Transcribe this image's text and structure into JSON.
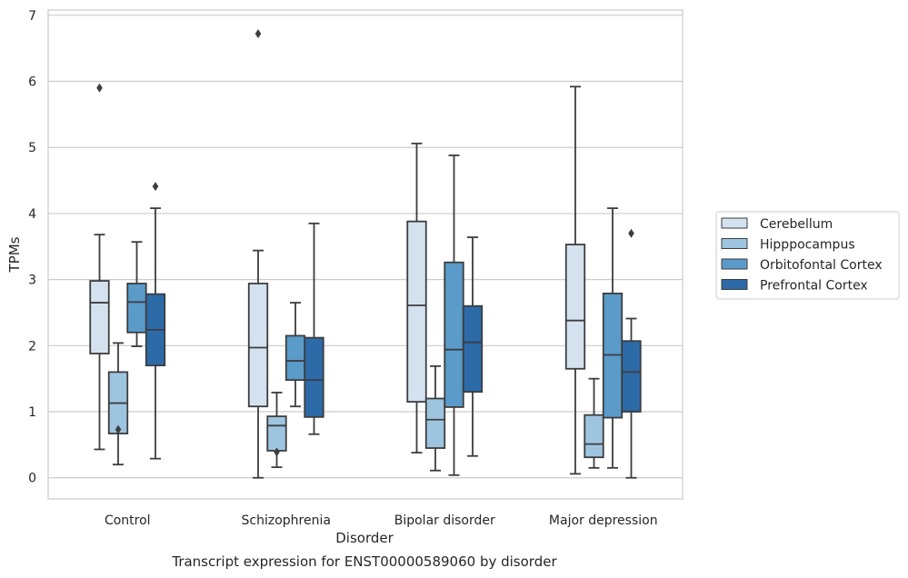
{
  "caption": "Transcript expression for ENST00000589060 by disorder",
  "chart_data": {
    "type": "box",
    "xlabel": "Disorder",
    "ylabel": "TPMs",
    "ylim": [
      -0.32,
      7.08
    ],
    "yticks": [
      0,
      1,
      2,
      3,
      4,
      5,
      6,
      7
    ],
    "grid": "horizontal",
    "legend_position": "right",
    "categories": [
      "Control",
      "Schizophrenia",
      "Bipolar disorder",
      "Major depression"
    ],
    "series": [
      {
        "name": "Cerebellum",
        "color": "#d4e2f0",
        "boxes": [
          {
            "whislo": 0.43,
            "q1": 1.88,
            "med": 2.65,
            "q3": 2.98,
            "whishi": 3.68,
            "fliers": [
              5.9
            ]
          },
          {
            "whislo": 0.0,
            "q1": 1.08,
            "med": 1.97,
            "q3": 2.94,
            "whishi": 3.44,
            "fliers": [
              6.72
            ]
          },
          {
            "whislo": 0.38,
            "q1": 1.15,
            "med": 2.61,
            "q3": 3.88,
            "whishi": 5.06,
            "fliers": []
          },
          {
            "whislo": 0.06,
            "q1": 1.65,
            "med": 2.38,
            "q3": 3.53,
            "whishi": 5.92,
            "fliers": []
          }
        ]
      },
      {
        "name": "Hipppocampus",
        "color": "#9ec5df",
        "boxes": [
          {
            "whislo": 0.2,
            "q1": 0.67,
            "med": 1.13,
            "q3": 1.6,
            "whishi": 2.04,
            "fliers": [
              0.73
            ]
          },
          {
            "whislo": 0.16,
            "q1": 0.41,
            "med": 0.79,
            "q3": 0.93,
            "whishi": 1.29,
            "fliers": [
              0.39
            ]
          },
          {
            "whislo": 0.11,
            "q1": 0.45,
            "med": 0.88,
            "q3": 1.2,
            "whishi": 1.69,
            "fliers": []
          },
          {
            "whislo": 0.15,
            "q1": 0.31,
            "med": 0.51,
            "q3": 0.95,
            "whishi": 1.5,
            "fliers": []
          }
        ]
      },
      {
        "name": "Orbitofontal Cortex",
        "color": "#5a9bc9",
        "boxes": [
          {
            "whislo": 1.99,
            "q1": 2.2,
            "med": 2.66,
            "q3": 2.94,
            "whishi": 3.57,
            "fliers": []
          },
          {
            "whislo": 1.08,
            "q1": 1.48,
            "med": 1.77,
            "q3": 2.15,
            "whishi": 2.65,
            "fliers": []
          },
          {
            "whislo": 0.04,
            "q1": 1.07,
            "med": 1.94,
            "q3": 3.26,
            "whishi": 4.88,
            "fliers": []
          },
          {
            "whislo": 0.15,
            "q1": 0.91,
            "med": 1.86,
            "q3": 2.79,
            "whishi": 4.08,
            "fliers": []
          }
        ]
      },
      {
        "name": "Prefrontal Cortex",
        "color": "#2c6aa8",
        "boxes": [
          {
            "whislo": 0.29,
            "q1": 1.7,
            "med": 2.24,
            "q3": 2.78,
            "whishi": 4.08,
            "fliers": [
              4.41
            ]
          },
          {
            "whislo": 0.66,
            "q1": 0.92,
            "med": 1.48,
            "q3": 2.12,
            "whishi": 3.85,
            "fliers": []
          },
          {
            "whislo": 0.33,
            "q1": 1.3,
            "med": 2.05,
            "q3": 2.6,
            "whishi": 3.64,
            "fliers": []
          },
          {
            "whislo": 0.0,
            "q1": 1.0,
            "med": 1.6,
            "q3": 2.07,
            "whishi": 2.41,
            "fliers": [
              3.7
            ]
          }
        ]
      }
    ]
  }
}
